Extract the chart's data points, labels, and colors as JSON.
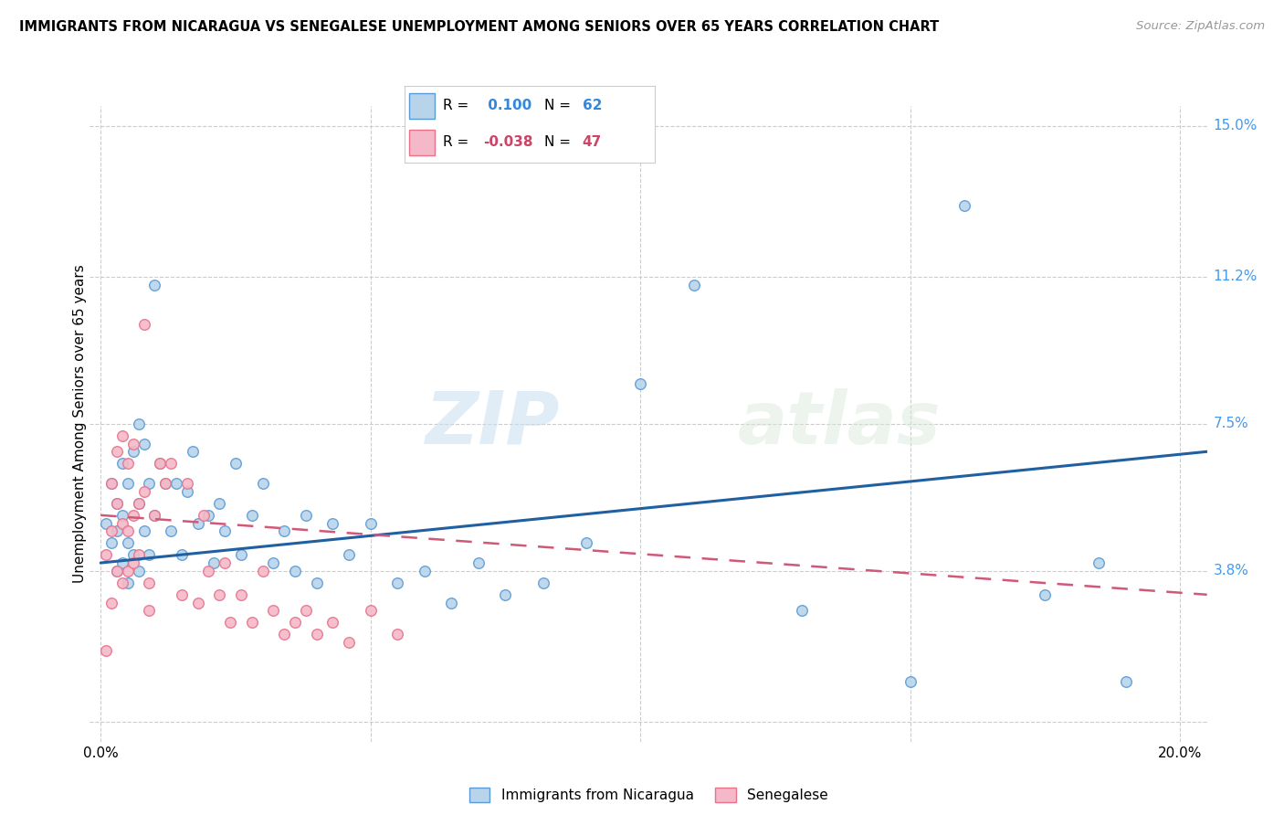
{
  "title": "IMMIGRANTS FROM NICARAGUA VS SENEGALESE UNEMPLOYMENT AMONG SENIORS OVER 65 YEARS CORRELATION CHART",
  "source": "Source: ZipAtlas.com",
  "xlabel_ticks": [
    "0.0%",
    "",
    "",
    "",
    "20.0%"
  ],
  "xlabel_tick_vals": [
    0.0,
    0.05,
    0.1,
    0.15,
    0.2
  ],
  "ylabel_ticks": [
    "15.0%",
    "11.2%",
    "7.5%",
    "3.8%",
    ""
  ],
  "ylabel_tick_vals": [
    0.15,
    0.112,
    0.075,
    0.038,
    0.0
  ],
  "xlim": [
    -0.002,
    0.205
  ],
  "ylim": [
    -0.005,
    0.155
  ],
  "blue_R": 0.1,
  "blue_N": 62,
  "pink_R": -0.038,
  "pink_N": 47,
  "blue_color": "#b8d4ea",
  "pink_color": "#f5b8c8",
  "blue_edge_color": "#5b9bd5",
  "pink_edge_color": "#e8728a",
  "blue_line_color": "#2060a0",
  "pink_line_color": "#d05878",
  "legend_blue_label": "Immigrants from Nicaragua",
  "legend_pink_label": "Senegalese",
  "watermark_zip": "ZIP",
  "watermark_atlas": "atlas",
  "ylabel": "Unemployment Among Seniors over 65 years",
  "blue_x": [
    0.001,
    0.002,
    0.002,
    0.003,
    0.003,
    0.003,
    0.004,
    0.004,
    0.004,
    0.005,
    0.005,
    0.005,
    0.006,
    0.006,
    0.007,
    0.007,
    0.007,
    0.008,
    0.008,
    0.009,
    0.009,
    0.01,
    0.01,
    0.011,
    0.012,
    0.013,
    0.014,
    0.015,
    0.016,
    0.017,
    0.018,
    0.02,
    0.021,
    0.022,
    0.023,
    0.025,
    0.026,
    0.028,
    0.03,
    0.032,
    0.034,
    0.036,
    0.038,
    0.04,
    0.043,
    0.046,
    0.05,
    0.055,
    0.06,
    0.065,
    0.07,
    0.075,
    0.082,
    0.09,
    0.1,
    0.11,
    0.13,
    0.15,
    0.16,
    0.175,
    0.185,
    0.19
  ],
  "blue_y": [
    0.05,
    0.06,
    0.045,
    0.055,
    0.048,
    0.038,
    0.065,
    0.052,
    0.04,
    0.06,
    0.045,
    0.035,
    0.068,
    0.042,
    0.075,
    0.055,
    0.038,
    0.07,
    0.048,
    0.06,
    0.042,
    0.11,
    0.052,
    0.065,
    0.06,
    0.048,
    0.06,
    0.042,
    0.058,
    0.068,
    0.05,
    0.052,
    0.04,
    0.055,
    0.048,
    0.065,
    0.042,
    0.052,
    0.06,
    0.04,
    0.048,
    0.038,
    0.052,
    0.035,
    0.05,
    0.042,
    0.05,
    0.035,
    0.038,
    0.03,
    0.04,
    0.032,
    0.035,
    0.045,
    0.085,
    0.11,
    0.028,
    0.01,
    0.13,
    0.032,
    0.04,
    0.01
  ],
  "pink_x": [
    0.001,
    0.001,
    0.002,
    0.002,
    0.002,
    0.003,
    0.003,
    0.003,
    0.004,
    0.004,
    0.004,
    0.005,
    0.005,
    0.005,
    0.006,
    0.006,
    0.006,
    0.007,
    0.007,
    0.008,
    0.008,
    0.009,
    0.009,
    0.01,
    0.011,
    0.012,
    0.013,
    0.015,
    0.016,
    0.018,
    0.019,
    0.02,
    0.022,
    0.023,
    0.024,
    0.026,
    0.028,
    0.03,
    0.032,
    0.034,
    0.036,
    0.038,
    0.04,
    0.043,
    0.046,
    0.05,
    0.055
  ],
  "pink_y": [
    0.018,
    0.042,
    0.06,
    0.048,
    0.03,
    0.068,
    0.055,
    0.038,
    0.072,
    0.05,
    0.035,
    0.065,
    0.048,
    0.038,
    0.07,
    0.052,
    0.04,
    0.055,
    0.042,
    0.1,
    0.058,
    0.035,
    0.028,
    0.052,
    0.065,
    0.06,
    0.065,
    0.032,
    0.06,
    0.03,
    0.052,
    0.038,
    0.032,
    0.04,
    0.025,
    0.032,
    0.025,
    0.038,
    0.028,
    0.022,
    0.025,
    0.028,
    0.022,
    0.025,
    0.02,
    0.028,
    0.022
  ],
  "blue_line_x": [
    0.0,
    0.205
  ],
  "blue_line_y": [
    0.04,
    0.068
  ],
  "pink_line_x": [
    0.0,
    0.205
  ],
  "pink_line_y": [
    0.052,
    0.032
  ]
}
